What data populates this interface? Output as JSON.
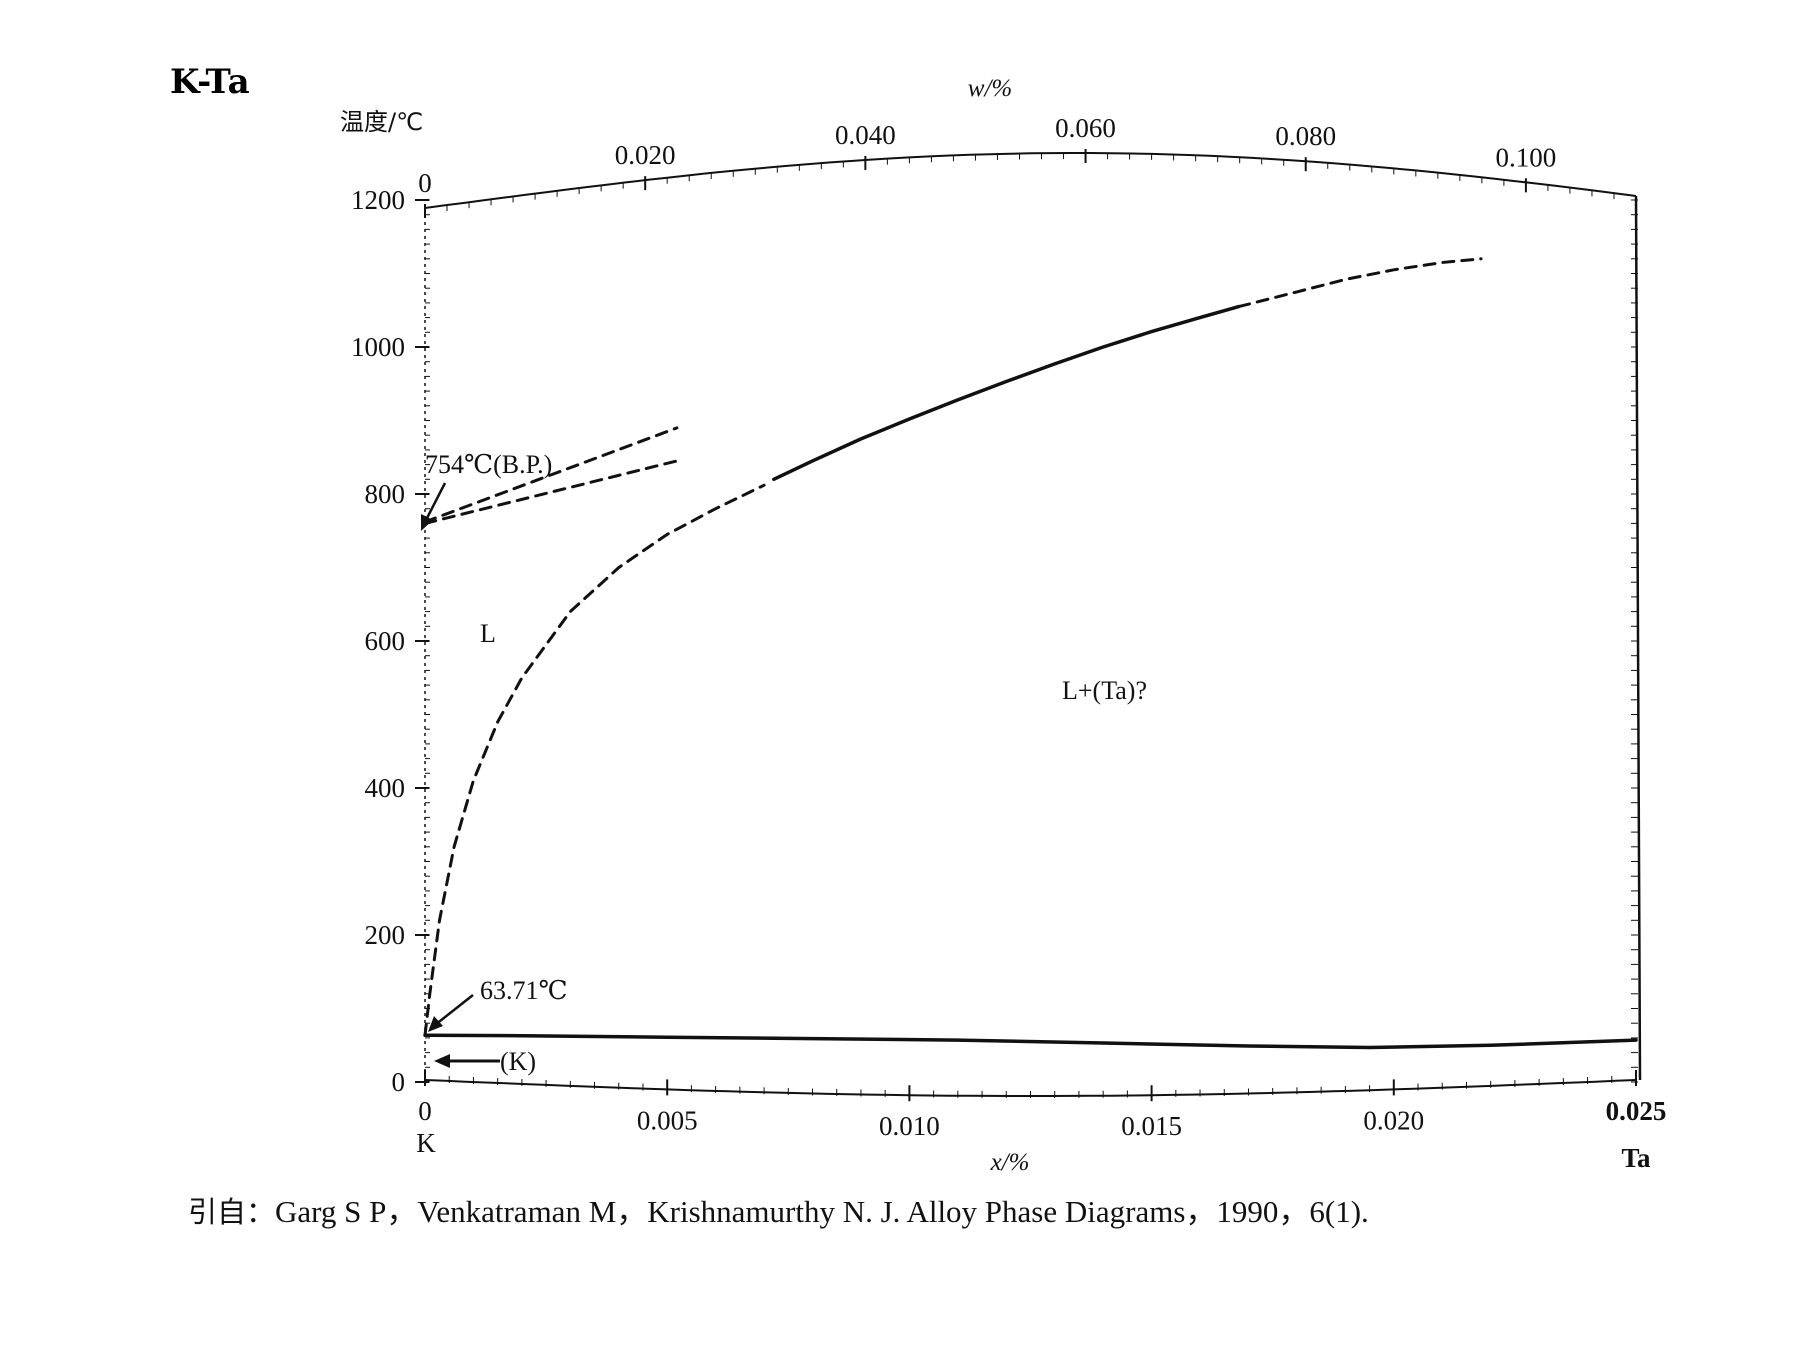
{
  "chart_data": {
    "type": "line",
    "title": "K-Ta",
    "ylabel": "温度/℃",
    "xlabel_bottom": "x/%",
    "xlabel_top": "w/%",
    "ylim": [
      0,
      1200
    ],
    "xlim": [
      0,
      0.025
    ],
    "x2lim": [
      0,
      0.11
    ],
    "yticks": [
      "0",
      "200",
      "400",
      "600",
      "800",
      "1000",
      "1200"
    ],
    "xticks_bottom": [
      "0",
      "0.005",
      "0.010",
      "0.015",
      "0.020",
      "0.025"
    ],
    "xticks_top": [
      "0",
      "0.020",
      "0.040",
      "0.060",
      "0.080",
      "0.100"
    ],
    "left_element": "K",
    "right_element": "Ta",
    "series": [
      {
        "style": "solid",
        "x": [
          0.0,
          0.002,
          0.005,
          0.008,
          0.011,
          0.014,
          0.017,
          0.0195,
          0.022,
          0.025
        ],
        "y": [
          63.71,
          63,
          61,
          59,
          57,
          53,
          49,
          47,
          50,
          57
        ]
      },
      {
        "style": "dashed",
        "x": [
          0.0,
          0.0001,
          0.0003,
          0.0006,
          0.001,
          0.0015,
          0.002,
          0.003,
          0.004,
          0.005,
          0.006,
          0.007
        ],
        "y": [
          63.71,
          120,
          220,
          320,
          410,
          490,
          550,
          640,
          700,
          745,
          780,
          812
        ]
      },
      {
        "style": "solid",
        "x": [
          0.0072,
          0.008,
          0.009,
          0.01,
          0.011,
          0.012,
          0.013,
          0.014,
          0.015,
          0.016,
          0.0168
        ],
        "y": [
          820,
          845,
          875,
          902,
          928,
          953,
          977,
          1000,
          1021,
          1040,
          1055
        ]
      },
      {
        "style": "dashed",
        "x": [
          0.0168,
          0.018,
          0.019,
          0.02,
          0.021,
          0.0218
        ],
        "y": [
          1055,
          1075,
          1092,
          1105,
          1115,
          1120
        ]
      },
      {
        "style": "dashed",
        "x": [
          0.0,
          0.0052
        ],
        "y": [
          762,
          890
        ]
      },
      {
        "style": "dashed",
        "x": [
          0.0,
          0.0052
        ],
        "y": [
          760,
          845
        ]
      }
    ],
    "annotations": [
      {
        "text": "754℃(B.P.)",
        "x": 0.0,
        "y": 754
      },
      {
        "text": "63.71℃",
        "x": 0.0,
        "y": 63.71
      },
      {
        "text": "(K)",
        "x": 0.0,
        "y": 30
      },
      {
        "text": "L",
        "x": 0.0012,
        "y": 620
      },
      {
        "text": "L+(Ta)?",
        "x": 0.0135,
        "y": 540
      }
    ]
  },
  "reference": {
    "prefix": "引自：",
    "text": "Garg S P，Venkatraman M，Krishnamurthy N. J. Alloy Phase Diagrams，1990，6(1)."
  }
}
